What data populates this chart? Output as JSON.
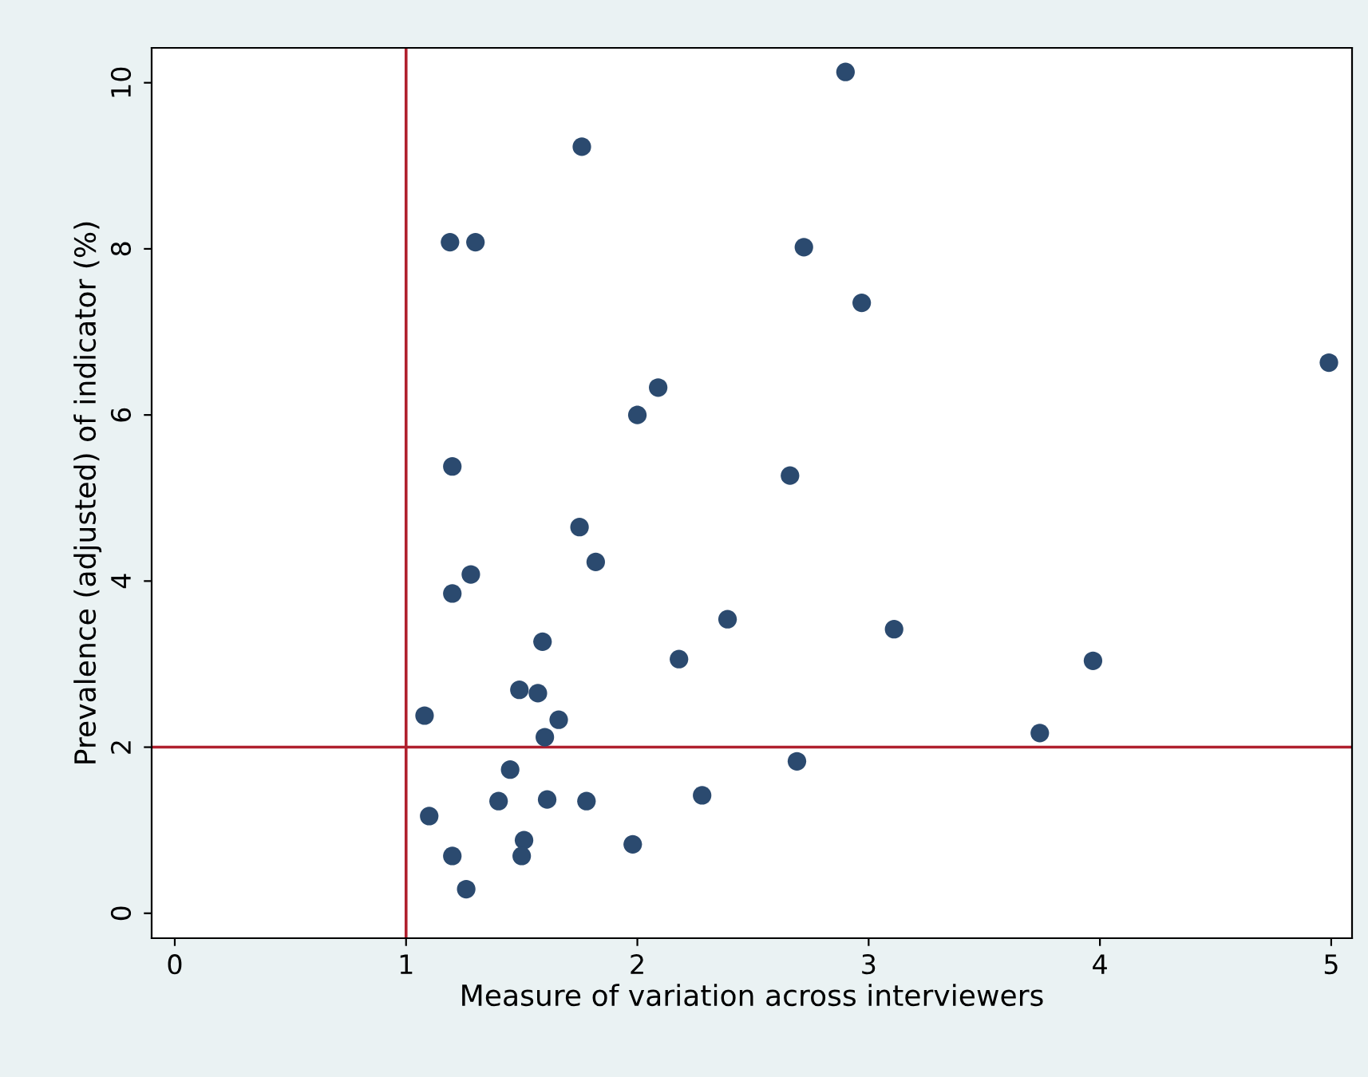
{
  "chart_data": {
    "type": "scatter",
    "xlabel": "Measure of variation across interviewers",
    "ylabel": "Prevalence (adjusted) of indicator (%)",
    "x": [
      2.9,
      1.76,
      1.19,
      1.3,
      2.72,
      2.97,
      4.99,
      2.09,
      2.0,
      2.66,
      1.2,
      1.75,
      1.82,
      1.28,
      1.2,
      2.39,
      3.11,
      1.59,
      2.18,
      3.97,
      1.49,
      1.57,
      1.66,
      1.08,
      1.6,
      3.74,
      2.69,
      1.45,
      2.28,
      1.4,
      1.61,
      1.78,
      1.1,
      1.51,
      1.98,
      1.2,
      1.5,
      1.26
    ],
    "values": [
      10.13,
      9.23,
      8.08,
      8.08,
      8.02,
      7.35,
      6.63,
      6.33,
      6.0,
      5.27,
      5.38,
      4.65,
      4.23,
      4.08,
      3.85,
      3.54,
      3.42,
      3.27,
      3.06,
      3.04,
      2.69,
      2.65,
      2.33,
      2.38,
      2.12,
      2.17,
      1.83,
      1.73,
      1.42,
      1.35,
      1.37,
      1.35,
      1.17,
      0.88,
      0.83,
      0.69,
      0.69,
      0.29
    ],
    "color": "#2b4a6f",
    "marker": "circle",
    "xlim": [
      -0.1,
      5.09
    ],
    "ylim": [
      -0.3,
      10.42
    ],
    "xticks": [
      0,
      1,
      2,
      3,
      4,
      5
    ],
    "yticks": [
      0,
      2,
      4,
      6,
      8,
      10
    ],
    "grid": false,
    "ref_lines": [
      {
        "axis": "x",
        "value": 1,
        "color": "#b0202e"
      },
      {
        "axis": "y",
        "value": 2,
        "color": "#b0202e"
      }
    ]
  }
}
